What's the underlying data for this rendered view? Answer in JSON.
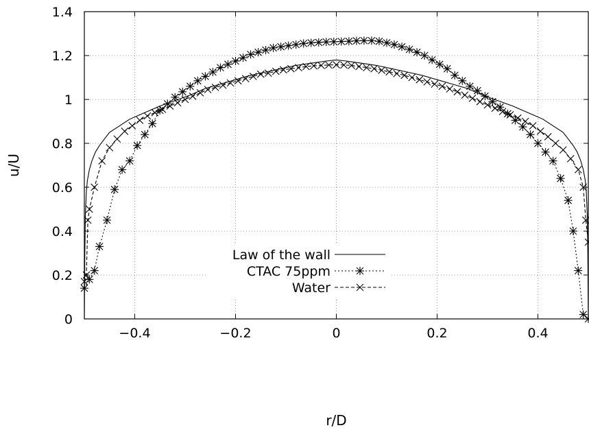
{
  "chart_data": {
    "type": "line",
    "xlabel": "r/D",
    "ylabel": "u/U",
    "xlim": [
      -0.5,
      0.5
    ],
    "ylim": [
      0,
      1.4
    ],
    "x_ticks": [
      -0.4,
      -0.2,
      0,
      0.2,
      0.4
    ],
    "x_tick_labels": [
      "−0.4",
      "−0.2",
      "0",
      "0.2",
      "0.4"
    ],
    "y_ticks": [
      0,
      0.2,
      0.4,
      0.6,
      0.8,
      1,
      1.2,
      1.4
    ],
    "y_tick_labels": [
      "0",
      "0.2",
      "0.4",
      "0.6",
      "0.8",
      "1",
      "1.2",
      "1.4"
    ],
    "grid": true,
    "legend_position": "center-left, lower half",
    "series": [
      {
        "name": "Law of the wall",
        "line_style": "solid",
        "marker": "none",
        "color": "#000000",
        "x": [
          -0.5,
          -0.499,
          -0.498,
          -0.496,
          -0.494,
          -0.49,
          -0.485,
          -0.478,
          -0.47,
          -0.46,
          -0.45,
          -0.43,
          -0.41,
          -0.39,
          -0.37,
          -0.35,
          -0.32,
          -0.29,
          -0.26,
          -0.23,
          -0.2,
          -0.17,
          -0.14,
          -0.11,
          -0.08,
          -0.05,
          -0.02,
          0,
          0.02,
          0.05,
          0.08,
          0.11,
          0.14,
          0.17,
          0.2,
          0.23,
          0.26,
          0.29,
          0.32,
          0.35,
          0.37,
          0.39,
          0.41,
          0.43,
          0.45,
          0.46,
          0.47,
          0.478,
          0.485,
          0.49,
          0.494,
          0.496,
          0.498,
          0.499,
          0.5
        ],
        "y": [
          0.0,
          0.3,
          0.47,
          0.58,
          0.63,
          0.68,
          0.72,
          0.76,
          0.79,
          0.82,
          0.85,
          0.88,
          0.91,
          0.93,
          0.95,
          0.97,
          0.995,
          1.02,
          1.05,
          1.07,
          1.09,
          1.11,
          1.125,
          1.14,
          1.155,
          1.165,
          1.175,
          1.18,
          1.175,
          1.165,
          1.155,
          1.14,
          1.125,
          1.11,
          1.09,
          1.07,
          1.05,
          1.02,
          0.995,
          0.97,
          0.95,
          0.93,
          0.91,
          0.88,
          0.85,
          0.82,
          0.79,
          0.76,
          0.72,
          0.68,
          0.63,
          0.58,
          0.47,
          0.3,
          0.0
        ]
      },
      {
        "name": "CTAC 75ppm",
        "line_style": "dotted",
        "marker": "star",
        "color": "#000000",
        "x": [
          -0.5,
          -0.49,
          -0.48,
          -0.47,
          -0.455,
          -0.44,
          -0.425,
          -0.41,
          -0.395,
          -0.38,
          -0.365,
          -0.35,
          -0.335,
          -0.32,
          -0.305,
          -0.29,
          -0.275,
          -0.26,
          -0.245,
          -0.23,
          -0.215,
          -0.2,
          -0.185,
          -0.17,
          -0.155,
          -0.14,
          -0.125,
          -0.11,
          -0.095,
          -0.08,
          -0.065,
          -0.05,
          -0.035,
          -0.02,
          -0.005,
          0.01,
          0.025,
          0.04,
          0.055,
          0.07,
          0.085,
          0.1,
          0.115,
          0.13,
          0.145,
          0.16,
          0.175,
          0.19,
          0.205,
          0.22,
          0.235,
          0.25,
          0.265,
          0.28,
          0.295,
          0.31,
          0.325,
          0.34,
          0.355,
          0.37,
          0.385,
          0.4,
          0.415,
          0.43,
          0.445,
          0.46,
          0.47,
          0.48,
          0.49,
          0.5
        ],
        "y": [
          0.14,
          0.18,
          0.22,
          0.33,
          0.45,
          0.59,
          0.68,
          0.72,
          0.79,
          0.84,
          0.89,
          0.95,
          0.98,
          1.01,
          1.035,
          1.06,
          1.085,
          1.105,
          1.125,
          1.145,
          1.16,
          1.175,
          1.19,
          1.205,
          1.215,
          1.225,
          1.235,
          1.24,
          1.245,
          1.25,
          1.255,
          1.258,
          1.26,
          1.262,
          1.263,
          1.264,
          1.265,
          1.267,
          1.268,
          1.268,
          1.265,
          1.258,
          1.25,
          1.24,
          1.228,
          1.215,
          1.2,
          1.18,
          1.16,
          1.14,
          1.11,
          1.085,
          1.06,
          1.04,
          1.015,
          0.99,
          0.965,
          0.935,
          0.905,
          0.875,
          0.84,
          0.8,
          0.76,
          0.72,
          0.64,
          0.54,
          0.4,
          0.22,
          0.02,
          0.0
        ]
      },
      {
        "name": "Water",
        "line_style": "dashed",
        "marker": "x",
        "color": "#000000",
        "x": [
          -0.5,
          -0.496,
          -0.493,
          -0.49,
          -0.48,
          -0.465,
          -0.45,
          -0.435,
          -0.42,
          -0.405,
          -0.39,
          -0.375,
          -0.36,
          -0.345,
          -0.33,
          -0.315,
          -0.3,
          -0.285,
          -0.27,
          -0.255,
          -0.24,
          -0.225,
          -0.21,
          -0.195,
          -0.18,
          -0.165,
          -0.15,
          -0.135,
          -0.12,
          -0.105,
          -0.09,
          -0.075,
          -0.06,
          -0.045,
          -0.03,
          -0.015,
          0,
          0.015,
          0.03,
          0.045,
          0.06,
          0.075,
          0.09,
          0.105,
          0.12,
          0.135,
          0.15,
          0.165,
          0.18,
          0.195,
          0.21,
          0.225,
          0.24,
          0.255,
          0.27,
          0.285,
          0.3,
          0.315,
          0.33,
          0.345,
          0.36,
          0.375,
          0.39,
          0.405,
          0.42,
          0.435,
          0.45,
          0.465,
          0.48,
          0.49,
          0.495,
          0.5
        ],
        "y": [
          0.17,
          0.2,
          0.45,
          0.5,
          0.6,
          0.72,
          0.78,
          0.82,
          0.855,
          0.88,
          0.905,
          0.925,
          0.94,
          0.955,
          0.97,
          0.985,
          1.0,
          1.015,
          1.03,
          1.045,
          1.055,
          1.065,
          1.075,
          1.085,
          1.095,
          1.105,
          1.115,
          1.12,
          1.128,
          1.135,
          1.14,
          1.145,
          1.15,
          1.153,
          1.155,
          1.157,
          1.158,
          1.157,
          1.155,
          1.15,
          1.145,
          1.14,
          1.133,
          1.126,
          1.118,
          1.11,
          1.1,
          1.09,
          1.08,
          1.07,
          1.06,
          1.048,
          1.035,
          1.02,
          1.005,
          0.99,
          0.975,
          0.96,
          0.945,
          0.93,
          0.915,
          0.9,
          0.88,
          0.855,
          0.83,
          0.8,
          0.77,
          0.73,
          0.68,
          0.6,
          0.45,
          0.35
        ]
      }
    ]
  }
}
